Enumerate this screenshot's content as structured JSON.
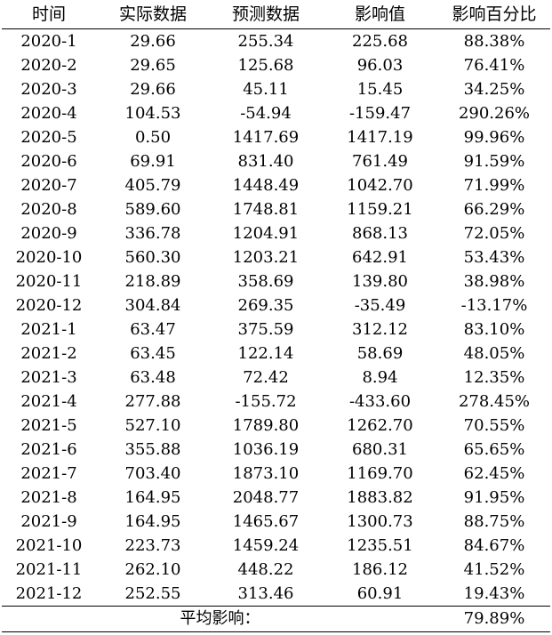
{
  "header": [
    "时间",
    "实际数据",
    "预测数据",
    "影响值",
    "影响百分比"
  ],
  "rows": [
    [
      "2020-1",
      "29.66",
      "255.34",
      "225.68",
      "88.38%"
    ],
    [
      "2020-2",
      "29.65",
      "125.68",
      "96.03",
      "76.41%"
    ],
    [
      "2020-3",
      "29.66",
      "45.11",
      "15.45",
      "34.25%"
    ],
    [
      "2020-4",
      "104.53",
      "-54.94",
      "-159.47",
      "290.26%"
    ],
    [
      "2020-5",
      "0.50",
      "1417.69",
      "1417.19",
      "99.96%"
    ],
    [
      "2020-6",
      "69.91",
      "831.40",
      "761.49",
      "91.59%"
    ],
    [
      "2020-7",
      "405.79",
      "1448.49",
      "1042.70",
      "71.99%"
    ],
    [
      "2020-8",
      "589.60",
      "1748.81",
      "1159.21",
      "66.29%"
    ],
    [
      "2020-9",
      "336.78",
      "1204.91",
      "868.13",
      "72.05%"
    ],
    [
      "2020-10",
      "560.30",
      "1203.21",
      "642.91",
      "53.43%"
    ],
    [
      "2020-11",
      "218.89",
      "358.69",
      "139.80",
      "38.98%"
    ],
    [
      "2020-12",
      "304.84",
      "269.35",
      "-35.49",
      "-13.17%"
    ],
    [
      "2021-1",
      "63.47",
      "375.59",
      "312.12",
      "83.10%"
    ],
    [
      "2021-2",
      "63.45",
      "122.14",
      "58.69",
      "48.05%"
    ],
    [
      "2021-3",
      "63.48",
      "72.42",
      "8.94",
      "12.35%"
    ],
    [
      "2021-4",
      "277.88",
      "-155.72",
      "-433.60",
      "278.45%"
    ],
    [
      "2021-5",
      "527.10",
      "1789.80",
      "1262.70",
      "70.55%"
    ],
    [
      "2021-6",
      "355.88",
      "1036.19",
      "680.31",
      "65.65%"
    ],
    [
      "2021-7",
      "703.40",
      "1873.10",
      "1169.70",
      "62.45%"
    ],
    [
      "2021-8",
      "164.95",
      "2048.77",
      "1883.82",
      "91.95%"
    ],
    [
      "2021-9",
      "164.95",
      "1465.67",
      "1300.73",
      "88.75%"
    ],
    [
      "2021-10",
      "223.73",
      "1459.24",
      "1235.51",
      "84.67%"
    ],
    [
      "2021-11",
      "262.10",
      "448.22",
      "186.12",
      "41.52%"
    ],
    [
      "2021-12",
      "252.55",
      "313.46",
      "60.91",
      "19.43%"
    ]
  ],
  "footer": {
    "label": "平均影响：",
    "value": "79.89%"
  }
}
